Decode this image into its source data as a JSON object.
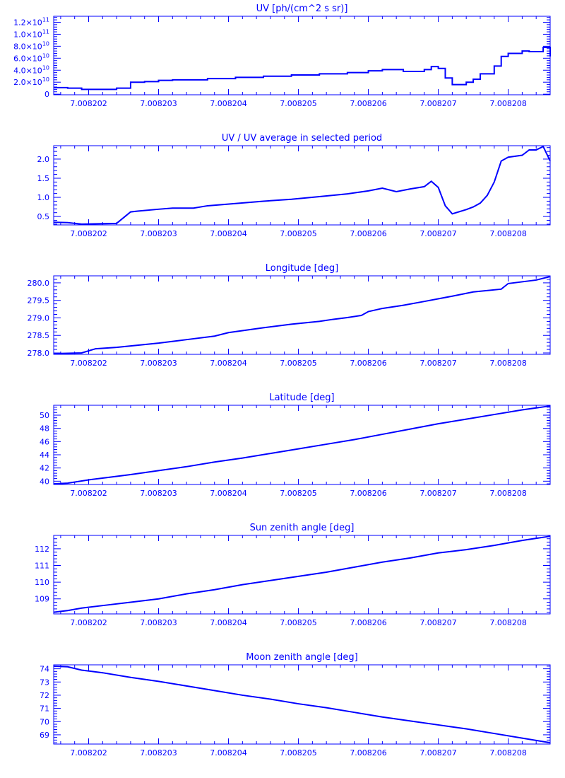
{
  "chart_data": [
    {
      "type": "line",
      "step": true,
      "title": "UV [ph/(cm^2 s sr)]",
      "xlim": [
        7.0082015,
        7.0082086
      ],
      "ylim": [
        -1000000000.0,
        130000000000.0
      ],
      "xticks": [
        "7.008202",
        "7.008203",
        "7.008204",
        "7.008205",
        "7.008206",
        "7.008207",
        "7.008208"
      ],
      "xtick_values": [
        7.008202,
        7.008203,
        7.008204,
        7.008205,
        7.008206,
        7.008207,
        7.008208
      ],
      "yticks": [
        {
          "v": 0,
          "m": "0",
          "e": ""
        },
        {
          "v": 20000000000.0,
          "m": "2.0×10",
          "e": "10"
        },
        {
          "v": 40000000000.0,
          "m": "4.0×10",
          "e": "10"
        },
        {
          "v": 60000000000.0,
          "m": "6.0×10",
          "e": "10"
        },
        {
          "v": 80000000000.0,
          "m": "8.0×10",
          "e": "10"
        },
        {
          "v": 100000000000.0,
          "m": "1.0×10",
          "e": "11"
        },
        {
          "v": 120000000000.0,
          "m": "1.2×10",
          "e": "11"
        }
      ],
      "series": [
        {
          "x": [
            7.0082015,
            7.0082017,
            7.0082019,
            7.0082024,
            7.0082026,
            7.0082028,
            7.008203,
            7.0082032,
            7.0082035,
            7.0082037,
            7.0082041,
            7.0082045,
            7.0082049,
            7.0082053,
            7.0082057,
            7.008206,
            7.0082062,
            7.0082065,
            7.0082068,
            7.0082069,
            7.008207,
            7.0082071,
            7.0082072,
            7.0082074,
            7.0082075,
            7.0082076,
            7.0082078,
            7.0082079,
            7.008208,
            7.0082082,
            7.0082083,
            7.0082085,
            7.0082086
          ],
          "y": [
            11000000000.0,
            10000000000.0,
            8000000000.0,
            10000000000.0,
            20000000000.0,
            21000000000.0,
            23000000000.0,
            24000000000.0,
            24000000000.0,
            26000000000.0,
            28000000000.0,
            30000000000.0,
            32000000000.0,
            34000000000.0,
            36000000000.0,
            39000000000.0,
            41000000000.0,
            38000000000.0,
            41000000000.0,
            46000000000.0,
            43000000000.0,
            27000000000.0,
            16000000000.0,
            20000000000.0,
            25000000000.0,
            34000000000.0,
            47000000000.0,
            63000000000.0,
            68000000000.0,
            72000000000.0,
            71000000000.0,
            78000000000.0,
            63000000000.0
          ]
        }
      ]
    },
    {
      "type": "line",
      "title": "UV / UV average in selected period",
      "xlim": [
        7.0082015,
        7.0082086
      ],
      "ylim": [
        0.28,
        2.35
      ],
      "xticks": [
        "7.008202",
        "7.008203",
        "7.008204",
        "7.008205",
        "7.008206",
        "7.008207",
        "7.008208"
      ],
      "xtick_values": [
        7.008202,
        7.008203,
        7.008204,
        7.008205,
        7.008206,
        7.008207,
        7.008208
      ],
      "yticks": [
        {
          "v": 0.5,
          "m": "0.5",
          "e": ""
        },
        {
          "v": 1.0,
          "m": "1.0",
          "e": ""
        },
        {
          "v": 1.5,
          "m": "1.5",
          "e": ""
        },
        {
          "v": 2.0,
          "m": "2.0",
          "e": ""
        }
      ],
      "series": [
        {
          "x": [
            7.0082015,
            7.0082017,
            7.0082019,
            7.0082024,
            7.0082026,
            7.0082027,
            7.008203,
            7.0082032,
            7.0082035,
            7.0082037,
            7.0082041,
            7.0082045,
            7.0082049,
            7.0082053,
            7.0082057,
            7.008206,
            7.0082062,
            7.0082064,
            7.0082066,
            7.0082068,
            7.0082069,
            7.008207,
            7.0082071,
            7.0082072,
            7.0082074,
            7.0082075,
            7.0082076,
            7.0082077,
            7.0082078,
            7.0082079,
            7.008208,
            7.0082082,
            7.0082083,
            7.0082084,
            7.0082085,
            7.0082086
          ],
          "y": [
            0.35,
            0.34,
            0.3,
            0.32,
            0.62,
            0.64,
            0.69,
            0.72,
            0.72,
            0.78,
            0.84,
            0.9,
            0.95,
            1.02,
            1.09,
            1.17,
            1.24,
            1.15,
            1.22,
            1.28,
            1.42,
            1.26,
            0.78,
            0.57,
            0.68,
            0.75,
            0.85,
            1.05,
            1.4,
            1.95,
            2.05,
            2.1,
            2.24,
            2.24,
            2.33,
            1.95
          ]
        }
      ]
    },
    {
      "type": "line",
      "title": "Longitude [deg]",
      "xlim": [
        7.0082015,
        7.0082086
      ],
      "ylim": [
        277.96,
        280.2
      ],
      "xticks": [
        "7.008202",
        "7.008203",
        "7.008204",
        "7.008205",
        "7.008206",
        "7.008207",
        "7.008208"
      ],
      "xtick_values": [
        7.008202,
        7.008203,
        7.008204,
        7.008205,
        7.008206,
        7.008207,
        7.008208
      ],
      "yticks": [
        {
          "v": 278.0,
          "m": "278.0",
          "e": ""
        },
        {
          "v": 278.5,
          "m": "278.5",
          "e": ""
        },
        {
          "v": 279.0,
          "m": "279.0",
          "e": ""
        },
        {
          "v": 279.5,
          "m": "279.5",
          "e": ""
        },
        {
          "v": 280.0,
          "m": "280.0",
          "e": ""
        }
      ],
      "series": [
        {
          "x": [
            7.0082015,
            7.0082017,
            7.0082019,
            7.0082021,
            7.0082024,
            7.0082027,
            7.008203,
            7.0082034,
            7.0082038,
            7.008204,
            7.0082045,
            7.0082049,
            7.0082053,
            7.0082055,
            7.0082057,
            7.0082059,
            7.008206,
            7.0082062,
            7.0082065,
            7.0082068,
            7.0082072,
            7.0082075,
            7.0082079,
            7.008208,
            7.0082084,
            7.0082086
          ],
          "y": [
            277.98,
            277.99,
            278.0,
            278.12,
            278.16,
            278.22,
            278.28,
            278.38,
            278.48,
            278.58,
            278.72,
            278.82,
            278.9,
            278.96,
            279.01,
            279.07,
            279.18,
            279.27,
            279.36,
            279.47,
            279.62,
            279.74,
            279.82,
            279.98,
            280.08,
            280.18
          ]
        }
      ]
    },
    {
      "type": "line",
      "title": "Latitude [deg]",
      "xlim": [
        7.0082015,
        7.0082086
      ],
      "ylim": [
        39.5,
        51.5
      ],
      "xticks": [
        "7.008202",
        "7.008203",
        "7.008204",
        "7.008205",
        "7.008206",
        "7.008207",
        "7.008208"
      ],
      "xtick_values": [
        7.008202,
        7.008203,
        7.008204,
        7.008205,
        7.008206,
        7.008207,
        7.008208
      ],
      "yticks": [
        {
          "v": 40,
          "m": "40",
          "e": ""
        },
        {
          "v": 42,
          "m": "42",
          "e": ""
        },
        {
          "v": 44,
          "m": "44",
          "e": ""
        },
        {
          "v": 46,
          "m": "46",
          "e": ""
        },
        {
          "v": 48,
          "m": "48",
          "e": ""
        },
        {
          "v": 50,
          "m": "50",
          "e": ""
        }
      ],
      "series": [
        {
          "x": [
            7.0082015,
            7.0082017,
            7.008202,
            7.0082023,
            7.0082026,
            7.008203,
            7.0082034,
            7.0082038,
            7.0082042,
            7.0082046,
            7.008205,
            7.0082054,
            7.0082058,
            7.0082062,
            7.0082066,
            7.008207,
            7.0082074,
            7.0082078,
            7.0082082,
            7.0082086
          ],
          "y": [
            39.6,
            39.7,
            40.2,
            40.6,
            41.0,
            41.6,
            42.2,
            42.9,
            43.5,
            44.2,
            44.9,
            45.6,
            46.3,
            47.1,
            47.9,
            48.7,
            49.4,
            50.1,
            50.8,
            51.4
          ]
        }
      ]
    },
    {
      "type": "line",
      "title": "Sun zenith angle [deg]",
      "xlim": [
        7.0082015,
        7.0082086
      ],
      "ylim": [
        108.1,
        112.8
      ],
      "xticks": [
        "7.008202",
        "7.008203",
        "7.008204",
        "7.008205",
        "7.008206",
        "7.008207",
        "7.008208"
      ],
      "xtick_values": [
        7.008202,
        7.008203,
        7.008204,
        7.008205,
        7.008206,
        7.008207,
        7.008208
      ],
      "yticks": [
        {
          "v": 109,
          "m": "109",
          "e": ""
        },
        {
          "v": 110,
          "m": "110",
          "e": ""
        },
        {
          "v": 111,
          "m": "111",
          "e": ""
        },
        {
          "v": 112,
          "m": "112",
          "e": ""
        }
      ],
      "series": [
        {
          "x": [
            7.0082015,
            7.0082017,
            7.0082019,
            7.0082022,
            7.0082026,
            7.008203,
            7.0082034,
            7.0082038,
            7.0082042,
            7.0082046,
            7.008205,
            7.0082054,
            7.0082058,
            7.0082062,
            7.0082066,
            7.008207,
            7.0082074,
            7.0082078,
            7.0082082,
            7.0082086
          ],
          "y": [
            108.2,
            108.3,
            108.45,
            108.6,
            108.8,
            109.0,
            109.3,
            109.55,
            109.85,
            110.1,
            110.35,
            110.6,
            110.9,
            111.2,
            111.45,
            111.75,
            111.95,
            112.2,
            112.5,
            112.75
          ]
        }
      ]
    },
    {
      "type": "line",
      "title": "Moon zenith angle [deg]",
      "xlim": [
        7.0082015,
        7.0082086
      ],
      "ylim": [
        68.3,
        74.3
      ],
      "xticks": [
        "7.008202",
        "7.008203",
        "7.008204",
        "7.008205",
        "7.008206",
        "7.008207",
        "7.008208"
      ],
      "xtick_values": [
        7.008202,
        7.008203,
        7.008204,
        7.008205,
        7.008206,
        7.008207,
        7.008208
      ],
      "yticks": [
        {
          "v": 69,
          "m": "69",
          "e": ""
        },
        {
          "v": 70,
          "m": "70",
          "e": ""
        },
        {
          "v": 71,
          "m": "71",
          "e": ""
        },
        {
          "v": 72,
          "m": "72",
          "e": ""
        },
        {
          "v": 73,
          "m": "73",
          "e": ""
        },
        {
          "v": 74,
          "m": "74",
          "e": ""
        }
      ],
      "series": [
        {
          "x": [
            7.0082015,
            7.0082017,
            7.0082019,
            7.0082022,
            7.0082026,
            7.008203,
            7.0082034,
            7.0082038,
            7.0082042,
            7.0082046,
            7.008205,
            7.0082054,
            7.0082058,
            7.0082062,
            7.0082066,
            7.008207,
            7.0082074,
            7.0082078,
            7.0082082,
            7.0082086
          ],
          "y": [
            74.2,
            74.15,
            73.9,
            73.7,
            73.35,
            73.05,
            72.7,
            72.35,
            72.0,
            71.7,
            71.35,
            71.05,
            70.7,
            70.35,
            70.05,
            69.75,
            69.45,
            69.1,
            68.75,
            68.4
          ]
        }
      ]
    }
  ]
}
